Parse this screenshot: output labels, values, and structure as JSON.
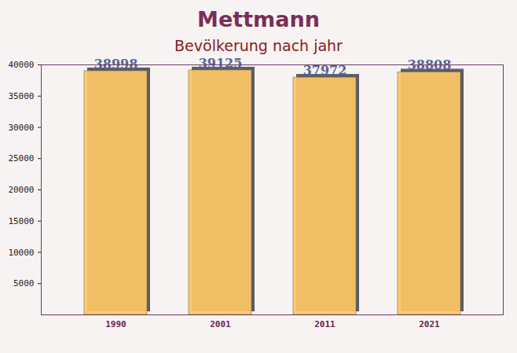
{
  "chart_data": {
    "type": "bar",
    "title": "Mettmann",
    "subtitle": "Bevölkerung nach jahr",
    "categories": [
      "1990",
      "2001",
      "2011",
      "2021"
    ],
    "values": [
      38998,
      39125,
      37972,
      38808
    ],
    "color": "#fdc865",
    "ylim": [
      0,
      40000
    ],
    "yticks": [
      5000,
      10000,
      15000,
      20000,
      25000,
      30000,
      35000,
      40000
    ],
    "grid": false,
    "data_labels": true
  }
}
